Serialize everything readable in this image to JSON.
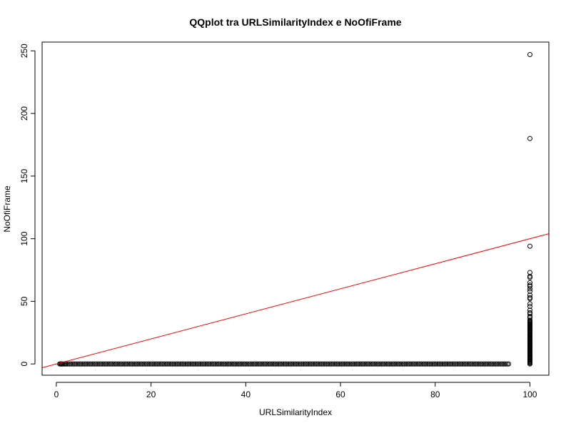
{
  "chart_data": {
    "type": "scatter",
    "title": "QQplot tra URLSimilarityIndex e NoOfiFrame",
    "xlabel": "URLSimilarityIndex",
    "ylabel": "NoOfiFrame",
    "xlim": [
      -3,
      104
    ],
    "ylim": [
      -9,
      257
    ],
    "x_ticks": [
      0,
      20,
      40,
      60,
      80,
      100
    ],
    "y_ticks": [
      0,
      50,
      100,
      150,
      200,
      250
    ],
    "grid": false,
    "legend": "none",
    "marker": "open-circle",
    "point_color": "#000000",
    "line_color": "#ff0000",
    "reference_line": {
      "intercept": 0,
      "slope": 1
    },
    "bottom_band": {
      "x_from": 0.7,
      "x_to": 95.5,
      "y": 0,
      "step": 0.35
    },
    "extra_points_at_zero": [
      0.9,
      1.0,
      1.2,
      1.4,
      1.7,
      2.0,
      95.5
    ],
    "right_column": {
      "x": 100,
      "dense_from": 0,
      "dense_to": 35,
      "dense_step": 0.7,
      "outliers": [
        37,
        38,
        40,
        41,
        43,
        46,
        48,
        52,
        53,
        55,
        58,
        60,
        62,
        63,
        65,
        69,
        70,
        73,
        94,
        180,
        247
      ]
    }
  }
}
